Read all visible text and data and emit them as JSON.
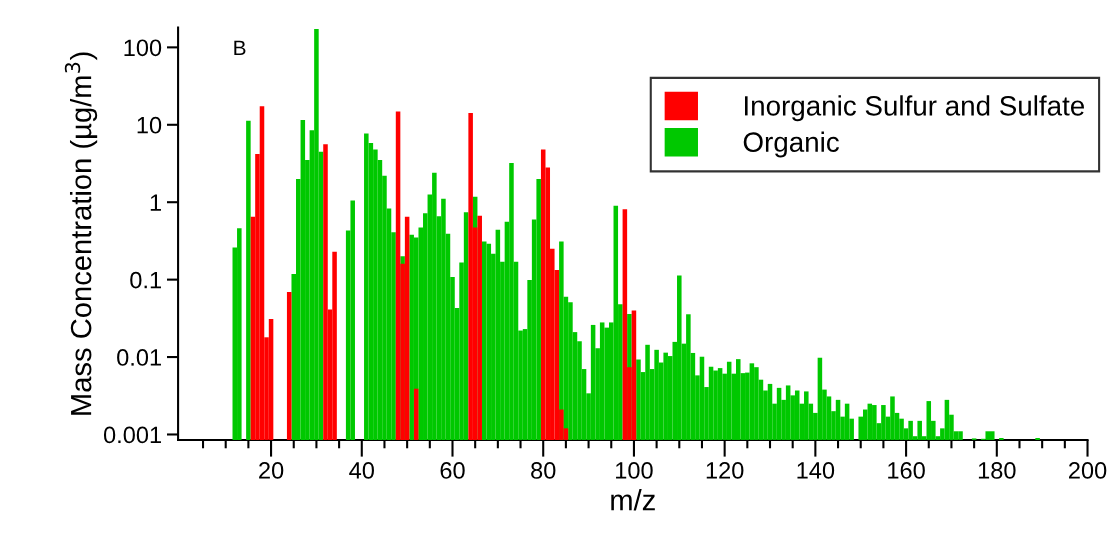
{
  "chart_data": {
    "type": "bar",
    "xlabel": "m/z",
    "ylabel": "Mass Concentration (µg/m$^{3}$)",
    "annotations": [
      "B"
    ],
    "log": "y",
    "grid": false,
    "legend": "top right",
    "xlim": [
      -0.5,
      200
    ],
    "ylim": [
      0.00085,
      180
    ],
    "xticks": [
      {
        "value": 5,
        "label": null
      },
      {
        "value": 10,
        "label": null
      },
      {
        "value": 15,
        "label": null
      },
      20,
      {
        "value": 25,
        "label": null
      },
      {
        "value": 30,
        "label": null
      },
      {
        "value": 35,
        "label": null
      },
      40,
      {
        "value": 45,
        "label": null
      },
      {
        "value": 50,
        "label": null
      },
      {
        "value": 55,
        "label": null
      },
      60,
      {
        "value": 65,
        "label": null
      },
      {
        "value": 70,
        "label": null
      },
      {
        "value": 75,
        "label": null
      },
      80,
      {
        "value": 85,
        "label": null
      },
      {
        "value": 90,
        "label": null
      },
      {
        "value": 95,
        "label": null
      },
      100,
      {
        "value": 105,
        "label": null
      },
      {
        "value": 110,
        "label": null
      },
      {
        "value": 115,
        "label": null
      },
      120,
      {
        "value": 125,
        "label": null
      },
      {
        "value": 130,
        "label": null
      },
      {
        "value": 135,
        "label": null
      },
      140,
      {
        "value": 145,
        "label": null
      },
      {
        "value": 150,
        "label": null
      },
      {
        "value": 155,
        "label": null
      },
      160,
      {
        "value": 165,
        "label": null
      },
      {
        "value": 170,
        "label": null
      },
      {
        "value": 175,
        "label": null
      },
      180,
      {
        "value": 185,
        "label": null
      },
      {
        "value": 190,
        "label": null
      },
      {
        "value": 195,
        "label": null
      },
      200
    ],
    "yticks": [
      0.001,
      0.01,
      0.1,
      1,
      10,
      100
    ],
    "series": [
      {
        "name": "Inorganic Sulfur and Sulfate",
        "color": "#ff0000",
        "x": [
          16,
          17,
          18,
          19,
          20,
          24,
          32,
          33,
          34,
          48,
          49,
          50,
          52,
          64,
          65,
          66,
          80,
          81,
          82,
          83,
          84,
          85,
          98,
          99,
          100
        ],
        "values": [
          0.65,
          4.2,
          17.3,
          0.018,
          0.031,
          0.069,
          5.6,
          0.041,
          0.23,
          14.9,
          0.16,
          0.65,
          0.0039,
          14.2,
          0.47,
          0.67,
          4.8,
          2.8,
          0.25,
          0.133,
          0.0021,
          0.0012,
          0.81,
          0.0074,
          0.04
        ]
      },
      {
        "name": "Organic",
        "color": "#00c800",
        "x": [
          12,
          13,
          15,
          25,
          26,
          27,
          28,
          29,
          30,
          31,
          37,
          38,
          41,
          42,
          43,
          44,
          45,
          46,
          47,
          49,
          51,
          52,
          53,
          54,
          55,
          56,
          57,
          58,
          59,
          60,
          61,
          62,
          63,
          65,
          67,
          68,
          69,
          70,
          71,
          72,
          73,
          74,
          75,
          76,
          77,
          78,
          79,
          84,
          85,
          86,
          87,
          88,
          89,
          90,
          91,
          92,
          93,
          94,
          95,
          96,
          97,
          99,
          101,
          102,
          103,
          104,
          105,
          106,
          107,
          108,
          109,
          110,
          111,
          112,
          113,
          114,
          115,
          116,
          117,
          118,
          119,
          120,
          121,
          122,
          123,
          124,
          125,
          126,
          127,
          128,
          129,
          130,
          131,
          132,
          133,
          134,
          135,
          136,
          137,
          138,
          139,
          140,
          141,
          142,
          143,
          144,
          145,
          146,
          147,
          148,
          150,
          151,
          152,
          153,
          154,
          155,
          156,
          157,
          158,
          159,
          160,
          161,
          162,
          163,
          164,
          165,
          166,
          167,
          168,
          169,
          170,
          171,
          172,
          175,
          177,
          178,
          179,
          181,
          189
        ],
        "values": [
          0.26,
          0.46,
          11.3,
          0.118,
          2.0,
          11.5,
          3.5,
          8.5,
          173,
          4.5,
          0.43,
          1.05,
          7.7,
          5.8,
          4.8,
          3.5,
          2.2,
          0.83,
          0.41,
          0.2,
          0.38,
          0.35,
          0.47,
          0.72,
          1.26,
          2.4,
          0.66,
          1.11,
          0.39,
          0.108,
          0.043,
          0.167,
          0.74,
          1.18,
          0.31,
          0.29,
          0.216,
          0.44,
          0.17,
          0.56,
          3.2,
          0.17,
          0.022,
          0.023,
          0.099,
          0.6,
          2.0,
          0.31,
          0.06,
          0.051,
          0.021,
          0.016,
          0.007,
          0.0034,
          0.026,
          0.013,
          0.028,
          0.024,
          0.028,
          0.9,
          0.048,
          0.036,
          0.0093,
          0.0064,
          0.0144,
          0.007,
          0.0124,
          0.0085,
          0.0114,
          0.0103,
          0.0157,
          0.113,
          0.0149,
          0.0357,
          0.0113,
          0.0058,
          0.0101,
          0.0041,
          0.0075,
          0.0067,
          0.0072,
          0.0061,
          0.0087,
          0.0061,
          0.0094,
          0.0062,
          0.0063,
          0.0083,
          0.0074,
          0.0051,
          0.0037,
          0.0045,
          0.0025,
          0.004,
          0.0028,
          0.0043,
          0.0032,
          0.0037,
          0.0025,
          0.0036,
          0.0025,
          0.0019,
          0.0098,
          0.0038,
          0.0031,
          0.002,
          0.0028,
          0.0017,
          0.0025,
          0.0016,
          0.0017,
          0.0021,
          0.0025,
          0.0024,
          0.0014,
          0.0024,
          0.0017,
          0.0031,
          0.0019,
          0.0016,
          0.0012,
          0.0015,
          0.00095,
          0.0015,
          0.00095,
          0.0027,
          0.0015,
          0.00095,
          0.0012,
          0.0028,
          0.0018,
          0.0011,
          0.0011,
          0.00089,
          0.00088,
          0.0011,
          0.0011,
          0.0009,
          0.0009
        ]
      }
    ]
  }
}
